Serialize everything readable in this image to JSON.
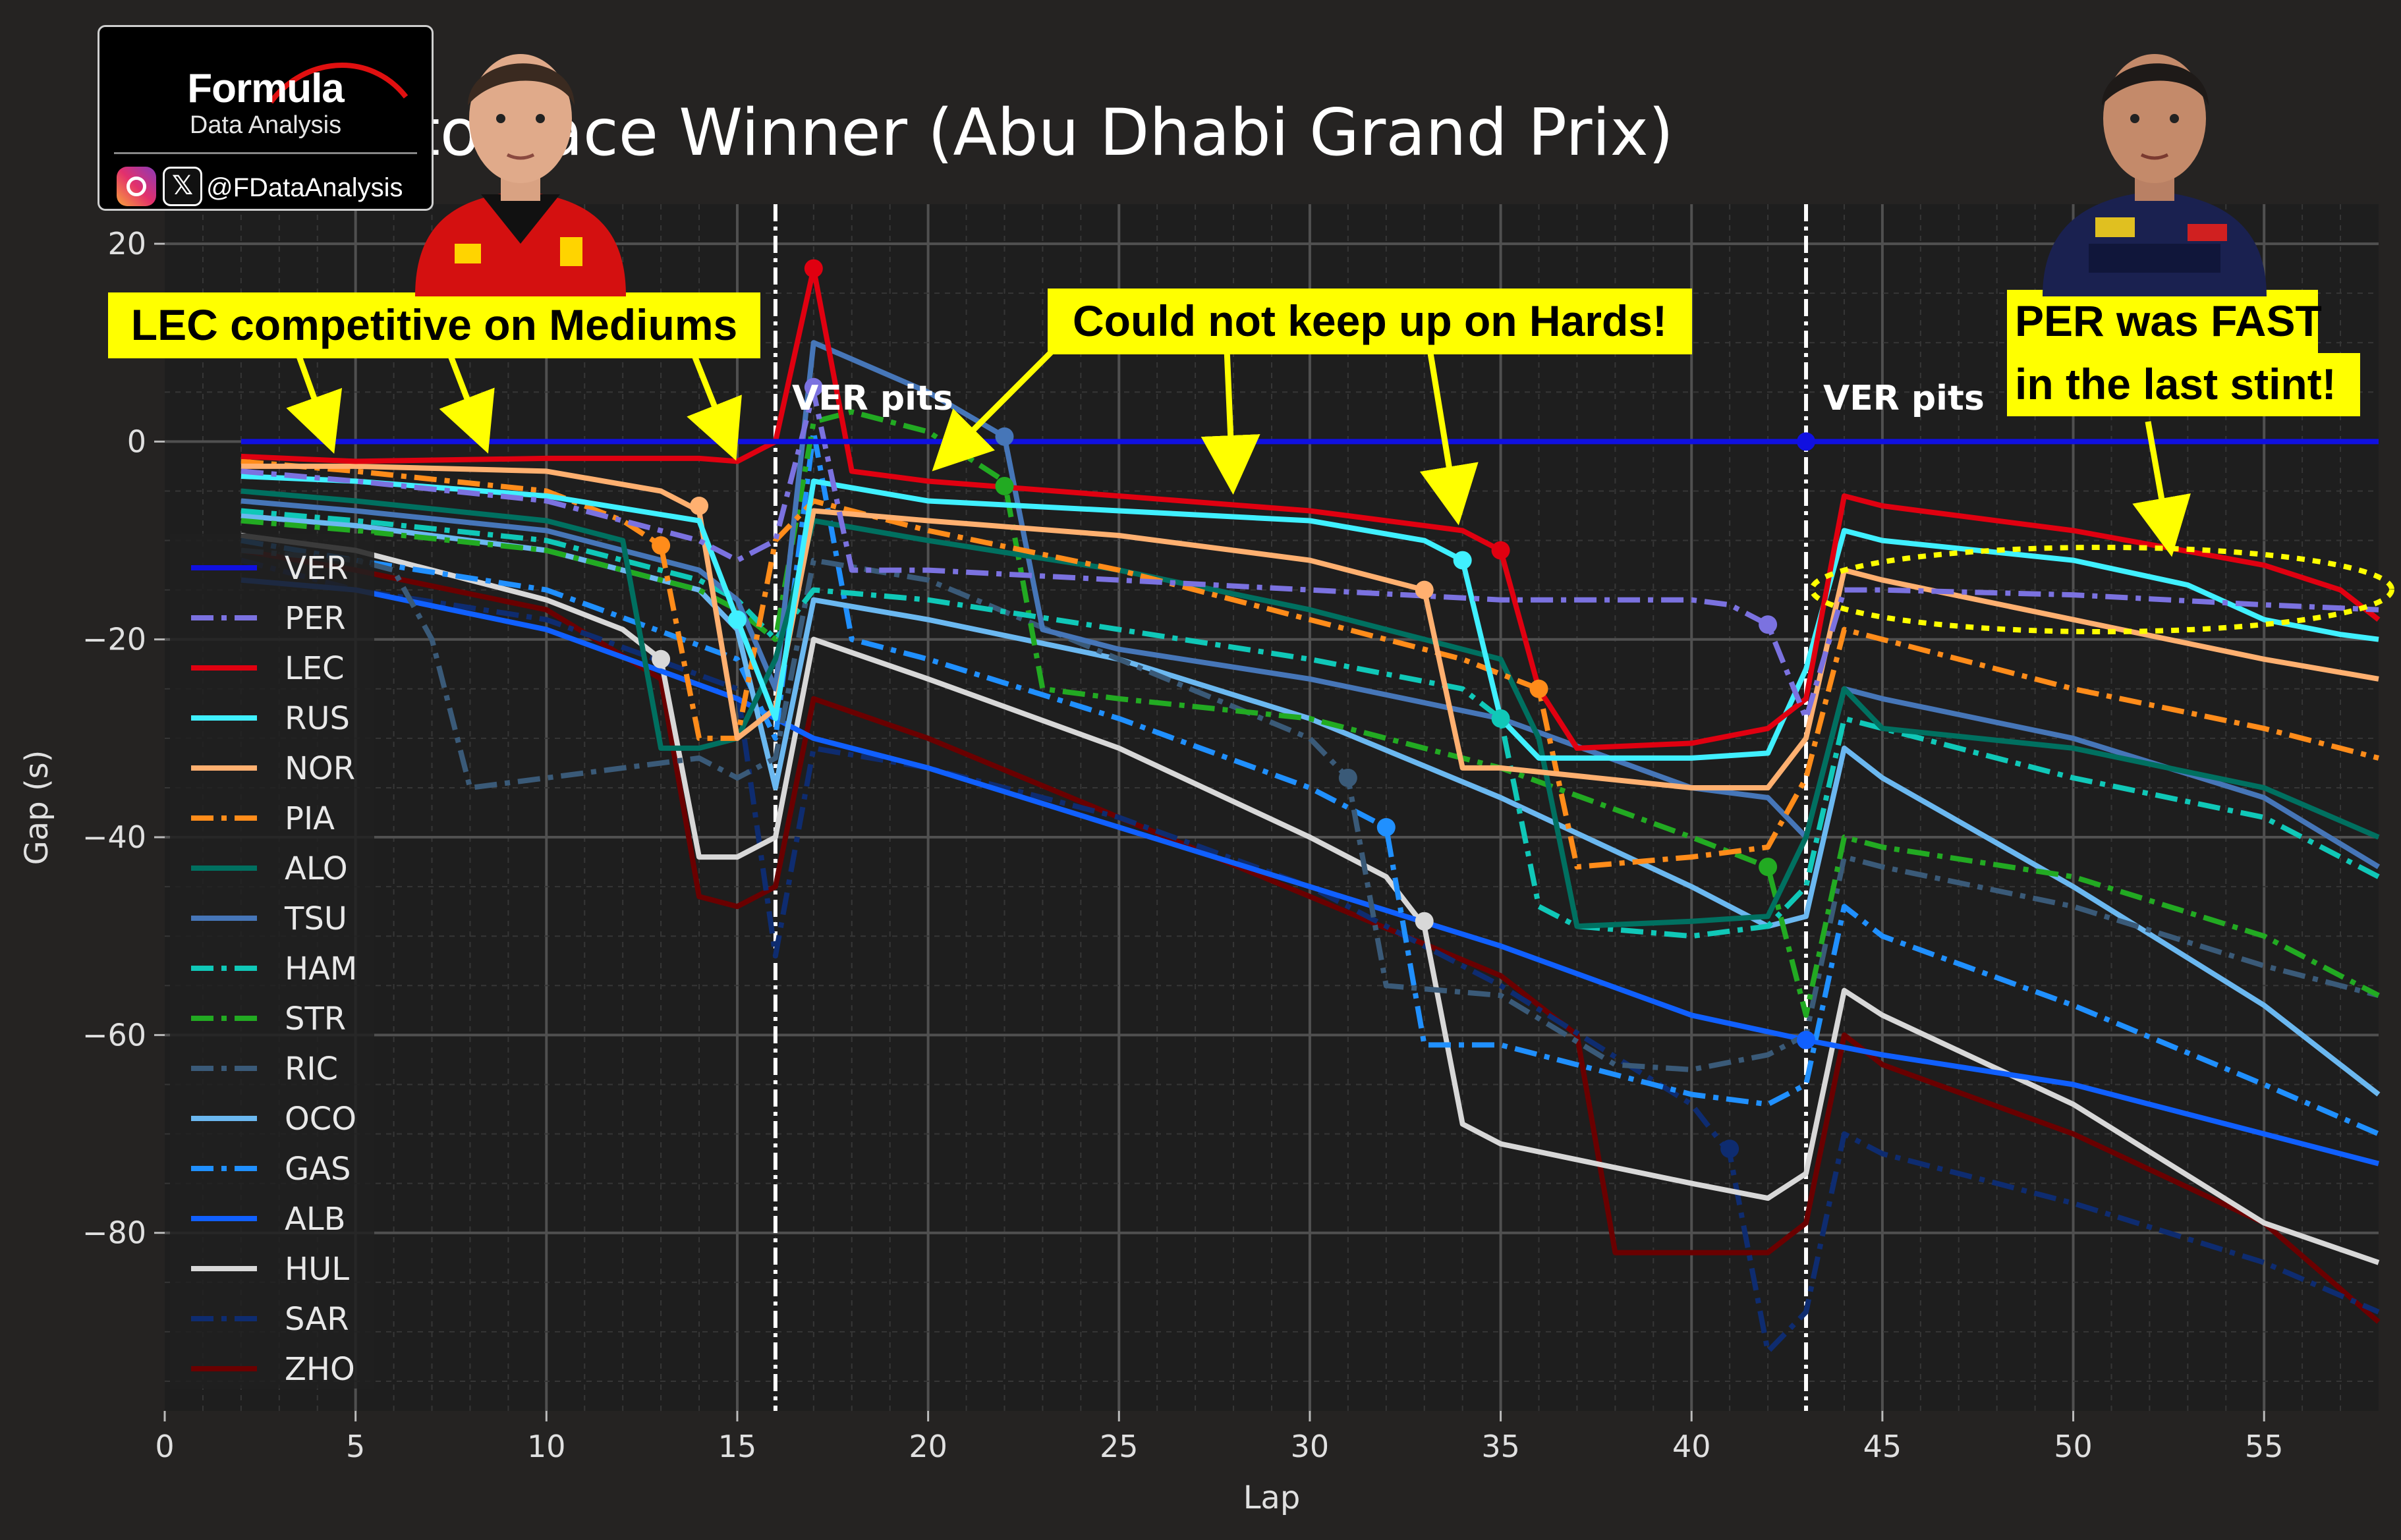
{
  "logo": {
    "title": "Formula",
    "subtitle": "Data Analysis",
    "handle": "@FDataAnalysis",
    "icons": [
      "instagram-icon",
      "x-icon"
    ]
  },
  "annotations": {
    "lec": "LEC competitive on Mediums",
    "hards": "Could not keep up on Hards!",
    "per_line1": "PER was FAST",
    "per_line2": "in the last stint!",
    "ver_pits_1": "VER pits",
    "ver_pits_2": "VER pits"
  },
  "colors": {
    "background": "#252322",
    "plot_bg": "#1e1e1e",
    "annotation_bg": "#ffff00",
    "arrow": "#ffff00",
    "text": "#ffffff"
  },
  "chart_data": {
    "type": "line",
    "title": "Gap to Race Winner (Abu Dhabi Grand Prix)",
    "xlabel": "Lap",
    "ylabel": "Gap (s)",
    "xlim": [
      0,
      58
    ],
    "ylim": [
      -98,
      24
    ],
    "xticks": [
      0,
      5,
      10,
      15,
      20,
      25,
      30,
      35,
      40,
      45,
      50,
      55
    ],
    "yticks": [
      20,
      0,
      -20,
      -40,
      -60,
      -80
    ],
    "grid": true,
    "legend_position": "left",
    "vlines": [
      16,
      43
    ],
    "series": [
      {
        "name": "VER",
        "color": "#1010e0",
        "dash": "solid",
        "x": [
          2,
          58
        ],
        "y": [
          0,
          0
        ],
        "pit_markers": [
          [
            43,
            0
          ]
        ]
      },
      {
        "name": "PER",
        "color": "#7b72e0",
        "dash": "dashdot",
        "x": [
          2,
          5,
          10,
          14,
          15,
          16,
          17,
          18,
          20,
          25,
          30,
          35,
          40,
          41,
          42,
          43,
          44,
          45,
          50,
          55,
          58
        ],
        "y": [
          -3,
          -4,
          -6,
          -10,
          -12,
          -10,
          5,
          -13,
          -13,
          -14,
          -15,
          -16,
          -16,
          -16.5,
          -18.5,
          -28,
          -15,
          -15,
          -15.5,
          -16.5,
          -17
        ],
        "pit_markers": [
          [
            17,
            5.5
          ],
          [
            42,
            -18.5
          ]
        ]
      },
      {
        "name": "LEC",
        "color": "#e00010",
        "dash": "solid",
        "x": [
          2,
          5,
          10,
          14,
          15,
          16,
          17,
          18,
          20,
          25,
          30,
          34,
          35,
          36,
          37,
          40,
          42,
          43,
          44,
          45,
          50,
          55,
          57,
          58
        ],
        "y": [
          -1.5,
          -2,
          -1.7,
          -1.7,
          -2,
          0,
          17.5,
          -3,
          -4,
          -5.5,
          -7,
          -9,
          -11,
          -25,
          -31,
          -30.5,
          -29,
          -26,
          -5.5,
          -6.5,
          -9,
          -12.5,
          -15,
          -18
        ],
        "pit_markers": [
          [
            17,
            17.5
          ],
          [
            35,
            -11
          ]
        ]
      },
      {
        "name": "RUS",
        "color": "#40f0ff",
        "dash": "solid",
        "x": [
          2,
          5,
          10,
          14,
          15,
          16,
          17,
          20,
          25,
          30,
          33,
          34,
          35,
          36,
          40,
          42,
          43,
          44,
          45,
          50,
          53,
          55,
          57,
          58
        ],
        "y": [
          -3.5,
          -4,
          -5.5,
          -8,
          -18,
          -28,
          -4,
          -6,
          -7,
          -8,
          -10,
          -12,
          -28,
          -32,
          -32,
          -31.5,
          -23,
          -9,
          -10,
          -12,
          -14.5,
          -18,
          -19.5,
          -20
        ],
        "pit_markers": [
          [
            15,
            -18
          ],
          [
            34,
            -12
          ]
        ]
      },
      {
        "name": "NOR",
        "color": "#ffb070",
        "dash": "solid",
        "x": [
          2,
          5,
          10,
          13,
          14,
          15,
          16,
          17,
          20,
          25,
          30,
          33,
          34,
          35,
          40,
          42,
          43,
          44,
          45,
          50,
          55,
          58
        ],
        "y": [
          -2.5,
          -2.5,
          -3,
          -5,
          -7,
          -30,
          -27,
          -7,
          -8,
          -9.5,
          -12,
          -15,
          -33,
          -33,
          -35,
          -35,
          -30,
          -13,
          -14,
          -18,
          -22,
          -24
        ],
        "pit_markers": [
          [
            14,
            -6.5
          ],
          [
            33,
            -15
          ]
        ]
      },
      {
        "name": "PIA",
        "color": "#ff8c1a",
        "dash": "dashdot",
        "x": [
          2,
          5,
          10,
          12,
          13,
          14,
          15,
          16,
          17,
          20,
          25,
          30,
          34,
          36,
          37,
          40,
          42,
          43,
          44,
          45,
          50,
          55,
          58
        ],
        "y": [
          -2,
          -3,
          -5,
          -8,
          -10.5,
          -30,
          -30,
          -10,
          -6,
          -9,
          -13,
          -18,
          -22,
          -25,
          -43,
          -42,
          -41,
          -34,
          -19,
          -20,
          -25,
          -29,
          -32
        ],
        "pit_markers": [
          [
            13,
            -10.5
          ],
          [
            36,
            -25
          ]
        ]
      },
      {
        "name": "ALO",
        "color": "#007060",
        "dash": "solid",
        "x": [
          2,
          5,
          10,
          12,
          13,
          14,
          15,
          16,
          17,
          20,
          25,
          30,
          35,
          36,
          37,
          40,
          42,
          43,
          44,
          45,
          50,
          55,
          58
        ],
        "y": [
          -5,
          -6,
          -8,
          -10,
          -31,
          -31,
          -30,
          -22,
          -8,
          -10,
          -13,
          -17,
          -22,
          -30,
          -49,
          -48.5,
          -48,
          -40,
          -25,
          -29,
          -31,
          -35,
          -40
        ],
        "pit_markers": []
      },
      {
        "name": "TSU",
        "color": "#4676b8",
        "dash": "solid",
        "x": [
          2,
          5,
          10,
          14,
          15,
          16,
          17,
          20,
          22,
          23,
          25,
          30,
          35,
          40,
          42,
          43,
          44,
          45,
          50,
          55,
          58
        ],
        "y": [
          -6,
          -7,
          -9,
          -13,
          -16,
          -25,
          10,
          5,
          0.5,
          -19,
          -21,
          -24,
          -28,
          -35,
          -36,
          -40,
          -25,
          -26,
          -30,
          -36,
          -43
        ],
        "pit_markers": [
          [
            22,
            0.5
          ]
        ]
      },
      {
        "name": "HAM",
        "color": "#10c8b8",
        "dash": "dashdot",
        "x": [
          2,
          5,
          10,
          14,
          15,
          16,
          17,
          20,
          25,
          30,
          34,
          35,
          36,
          37,
          40,
          42,
          43,
          44,
          45,
          50,
          55,
          58
        ],
        "y": [
          -7,
          -8,
          -10,
          -14,
          -16,
          -20,
          -15,
          -16,
          -19,
          -22,
          -25,
          -28,
          -47,
          -49,
          -50,
          -49,
          -45,
          -28,
          -29,
          -34,
          -38,
          -44
        ],
        "pit_markers": [
          [
            35,
            -28
          ]
        ]
      },
      {
        "name": "STR",
        "color": "#22aa22",
        "dash": "dashdot",
        "x": [
          2,
          5,
          10,
          14,
          15,
          16,
          17,
          18,
          20,
          22,
          23,
          25,
          30,
          35,
          40,
          42,
          43,
          44,
          45,
          50,
          55,
          58
        ],
        "y": [
          -8,
          -9,
          -11,
          -15,
          -17,
          -20,
          2,
          3,
          1,
          -4,
          -25,
          -26,
          -28,
          -33,
          -40,
          -43,
          -58,
          -40,
          -41,
          -44,
          -50,
          -56
        ],
        "pit_markers": [
          [
            22,
            -4.5
          ],
          [
            42,
            -43
          ]
        ]
      },
      {
        "name": "RIC",
        "color": "#3a5a78",
        "dash": "dashdot",
        "x": [
          2,
          5,
          6,
          7,
          8,
          10,
          14,
          15,
          16,
          17,
          20,
          25,
          30,
          31,
          32,
          35,
          38,
          40,
          42,
          43,
          44,
          45,
          50,
          55,
          58
        ],
        "y": [
          -11,
          -12,
          -13,
          -20,
          -35,
          -34,
          -32,
          -34,
          -32,
          -12,
          -14,
          -22,
          -30,
          -34,
          -55,
          -56,
          -63,
          -63.5,
          -62,
          -60,
          -42,
          -43,
          -47,
          -53,
          -56
        ],
        "pit_markers": [
          [
            31,
            -34
          ]
        ]
      },
      {
        "name": "OCO",
        "color": "#6bb8f0",
        "dash": "solid",
        "x": [
          2,
          5,
          10,
          14,
          15,
          16,
          17,
          20,
          25,
          30,
          35,
          40,
          42,
          43,
          44,
          45,
          50,
          55,
          58
        ],
        "y": [
          -7.5,
          -8.5,
          -11,
          -15,
          -19,
          -35,
          -16,
          -18,
          -22,
          -28,
          -36,
          -45,
          -49,
          -48,
          -31,
          -34,
          -45,
          -57,
          -66
        ],
        "pit_markers": []
      },
      {
        "name": "GAS",
        "color": "#2090ff",
        "dash": "dashdot",
        "x": [
          2,
          5,
          10,
          15,
          16,
          17,
          18,
          20,
          25,
          30,
          31,
          32,
          33,
          35,
          40,
          42,
          43,
          44,
          45,
          50,
          55,
          58
        ],
        "y": [
          -10,
          -12,
          -15,
          -22,
          -30,
          1,
          -20,
          -22,
          -28,
          -35,
          -37,
          -39,
          -61,
          -61,
          -66,
          -67,
          -65,
          -47,
          -50,
          -57,
          -65,
          -70
        ],
        "pit_markers": [
          [
            32,
            -39
          ]
        ]
      },
      {
        "name": "ALB",
        "color": "#1060ff",
        "dash": "solid",
        "x": [
          2,
          5,
          10,
          15,
          17,
          20,
          25,
          30,
          35,
          40,
          43,
          45,
          50,
          55,
          57,
          58
        ],
        "y": [
          -14,
          -15,
          -19,
          -26,
          -30,
          -33,
          -39,
          -45,
          -51,
          -58,
          -60.5,
          -62,
          -65,
          -70,
          -72,
          -73
        ],
        "pit_markers": [
          [
            43,
            -60.5
          ]
        ]
      },
      {
        "name": "HUL",
        "color": "#d8d8d8",
        "dash": "solid",
        "x": [
          2,
          5,
          10,
          12,
          13,
          14,
          15,
          16,
          17,
          20,
          25,
          30,
          32,
          33,
          34,
          35,
          40,
          42,
          43,
          44,
          45,
          50,
          55,
          58
        ],
        "y": [
          -9.5,
          -11,
          -16,
          -19,
          -22,
          -42,
          -42,
          -40,
          -20,
          -24,
          -31,
          -40,
          -44,
          -49,
          -69,
          -71,
          -75,
          -76.5,
          -74,
          -55.5,
          -58,
          -67,
          -79,
          -83
        ],
        "pit_markers": [
          [
            13,
            -22
          ],
          [
            33,
            -48.5
          ]
        ]
      },
      {
        "name": "SAR",
        "color": "#0e2c70",
        "dash": "dashdot",
        "x": [
          2,
          5,
          10,
          15,
          16,
          17,
          20,
          25,
          30,
          35,
          40,
          41,
          42,
          43,
          44,
          45,
          50,
          55,
          58
        ],
        "y": [
          -12,
          -15,
          -18,
          -25,
          -52,
          -31,
          -33,
          -38,
          -45,
          -55,
          -67,
          -72,
          -92,
          -88,
          -70,
          -72,
          -77,
          -83,
          -88
        ],
        "pit_markers": [
          [
            41,
            -71.5
          ]
        ]
      },
      {
        "name": "ZHO",
        "color": "#6a0000",
        "dash": "solid",
        "x": [
          2,
          5,
          10,
          13,
          14,
          15,
          16,
          17,
          20,
          25,
          30,
          35,
          37,
          38,
          40,
          42,
          43,
          44,
          45,
          50,
          55,
          58
        ],
        "y": [
          -11,
          -13,
          -17,
          -24,
          -46,
          -47,
          -45,
          -26,
          -30,
          -38,
          -46,
          -54,
          -60,
          -82,
          -82,
          -82,
          -79,
          -60,
          -63,
          -70,
          -79,
          -89
        ],
        "pit_markers": []
      }
    ]
  }
}
